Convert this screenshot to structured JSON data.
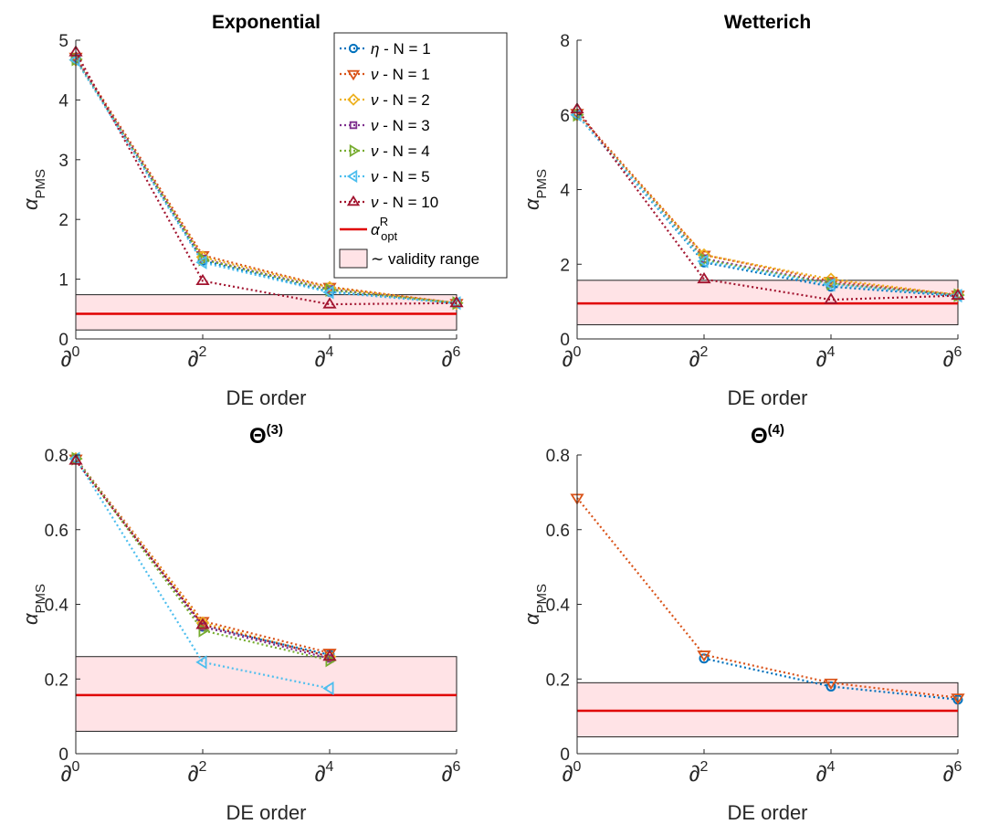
{
  "xlabel_text": "DE order",
  "ylabel": {
    "symbol": "α",
    "subscript": "PMS"
  },
  "x_tick_labels": [
    "∂0",
    "∂2",
    "∂4",
    "∂6"
  ],
  "legend": {
    "entries": [
      {
        "greek": "η",
        "text": " - N = 1",
        "color": "#0072BD",
        "marker": "circle"
      },
      {
        "greek": "ν",
        "text": " - N = 1",
        "color": "#D95319",
        "marker": "triangle-down"
      },
      {
        "greek": "ν",
        "text": " - N = 2",
        "color": "#EDB120",
        "marker": "diamond"
      },
      {
        "greek": "ν",
        "text": " - N = 3",
        "color": "#7E2F8E",
        "marker": "square"
      },
      {
        "greek": "ν",
        "text": " - N = 4",
        "color": "#77AC30",
        "marker": "triangle-right"
      },
      {
        "greek": "ν",
        "text": " - N = 5",
        "color": "#4DBEEE",
        "marker": "triangle-left"
      },
      {
        "greek": "ν",
        "text": " - N = 10",
        "color": "#A2142F",
        "marker": "triangle-up"
      }
    ],
    "line_entry": {
      "symbol": "α",
      "sub": "opt",
      "sup": "R",
      "color": "#E00000"
    },
    "patch_entry": {
      "tilde": "∼",
      "text": " validity range"
    }
  },
  "chart_data": [
    {
      "type": "line",
      "title": "Exponential",
      "xlabel": "DE order",
      "ylabel": "α_PMS",
      "categories": [
        "∂0",
        "∂2",
        "∂4",
        "∂6"
      ],
      "ylim": [
        0,
        5
      ],
      "yticks": [
        "0",
        "1",
        "2",
        "3",
        "4",
        "5"
      ],
      "ytick_values": [
        0,
        1,
        2,
        3,
        4,
        5
      ],
      "band": [
        0.15,
        0.74
      ],
      "alpha_opt_R": 0.42,
      "series": [
        {
          "name": "η - N = 1",
          "values": [
            4.7,
            1.31,
            0.79,
            0.6
          ]
        },
        {
          "name": "ν - N = 1",
          "values": [
            4.72,
            1.4,
            0.87,
            0.6
          ]
        },
        {
          "name": "ν - N = 2",
          "values": [
            4.67,
            1.37,
            0.86,
            0.6
          ]
        },
        {
          "name": "ν - N = 3",
          "values": [
            4.7,
            1.34,
            0.83,
            0.6
          ]
        },
        {
          "name": "ν - N = 4",
          "values": [
            4.68,
            1.33,
            0.82,
            0.6
          ]
        },
        {
          "name": "ν - N = 5",
          "values": [
            4.67,
            1.28,
            0.78,
            0.6
          ]
        },
        {
          "name": "ν - N = 10",
          "values": [
            4.8,
            0.97,
            0.58,
            0.6
          ]
        }
      ]
    },
    {
      "type": "line",
      "title": "Wetterich",
      "xlabel": "DE order",
      "ylabel": "α_PMS",
      "categories": [
        "∂0",
        "∂2",
        "∂4",
        "∂6"
      ],
      "ylim": [
        0,
        8
      ],
      "yticks": [
        "0",
        "2",
        "4",
        "6",
        "8"
      ],
      "ytick_values": [
        0,
        2,
        4,
        6,
        8
      ],
      "band": [
        0.38,
        1.57
      ],
      "alpha_opt_R": 0.95,
      "series": [
        {
          "name": "η - N = 1",
          "values": [
            6.0,
            2.05,
            1.4,
            1.15
          ]
        },
        {
          "name": "ν - N = 1",
          "values": [
            6.05,
            2.25,
            1.55,
            1.18
          ]
        },
        {
          "name": "ν - N = 2",
          "values": [
            6.0,
            2.25,
            1.6,
            1.18
          ]
        },
        {
          "name": "ν - N = 3",
          "values": [
            6.0,
            2.15,
            1.5,
            1.17
          ]
        },
        {
          "name": "ν - N = 4",
          "values": [
            6.0,
            2.12,
            1.48,
            1.17
          ]
        },
        {
          "name": "ν - N = 5",
          "values": [
            6.0,
            2.08,
            1.45,
            1.16
          ]
        },
        {
          "name": "ν - N = 10",
          "values": [
            6.15,
            1.6,
            1.05,
            1.16
          ]
        }
      ]
    },
    {
      "type": "line",
      "title_main": "Θ",
      "title_sup": "(3)",
      "xlabel": "DE order",
      "ylabel": "α_PMS",
      "categories": [
        "∂0",
        "∂2",
        "∂4",
        "∂6"
      ],
      "ylim": [
        0,
        0.8
      ],
      "yticks": [
        "0",
        "0.2",
        "0.4",
        "0.6",
        "0.8"
      ],
      "ytick_values": [
        0,
        0.2,
        0.4,
        0.6,
        0.8
      ],
      "band": [
        0.06,
        0.26
      ],
      "alpha_opt_R": 0.157,
      "series": [
        {
          "name": "η - N = 1",
          "values": [
            0.79,
            0.34,
            0.265,
            null
          ]
        },
        {
          "name": "ν - N = 1",
          "values": [
            0.79,
            0.355,
            0.27,
            null
          ]
        },
        {
          "name": "ν - N = 2",
          "values": [
            0.79,
            0.35,
            0.26,
            null
          ]
        },
        {
          "name": "ν - N = 3",
          "values": [
            0.79,
            0.34,
            0.255,
            null
          ]
        },
        {
          "name": "ν - N = 4",
          "values": [
            0.79,
            0.33,
            0.25,
            null
          ]
        },
        {
          "name": "ν - N = 5",
          "values": [
            0.79,
            0.245,
            0.175,
            null
          ]
        },
        {
          "name": "ν - N = 10",
          "values": [
            0.785,
            0.345,
            0.26,
            null
          ]
        }
      ]
    },
    {
      "type": "line",
      "title_main": "Θ",
      "title_sup": "(4)",
      "xlabel": "DE order",
      "ylabel": "α_PMS",
      "categories": [
        "∂0",
        "∂2",
        "∂4",
        "∂6"
      ],
      "ylim": [
        0,
        0.8
      ],
      "yticks": [
        "0",
        "0.2",
        "0.4",
        "0.6",
        "0.8"
      ],
      "ytick_values": [
        0,
        0.2,
        0.4,
        0.6,
        0.8
      ],
      "band": [
        0.045,
        0.19
      ],
      "alpha_opt_R": 0.115,
      "series": [
        {
          "name": "η - N = 1",
          "values": [
            null,
            0.255,
            0.18,
            0.145
          ]
        },
        {
          "name": "ν - N = 1",
          "values": [
            0.685,
            0.265,
            0.19,
            0.15
          ]
        }
      ]
    }
  ]
}
